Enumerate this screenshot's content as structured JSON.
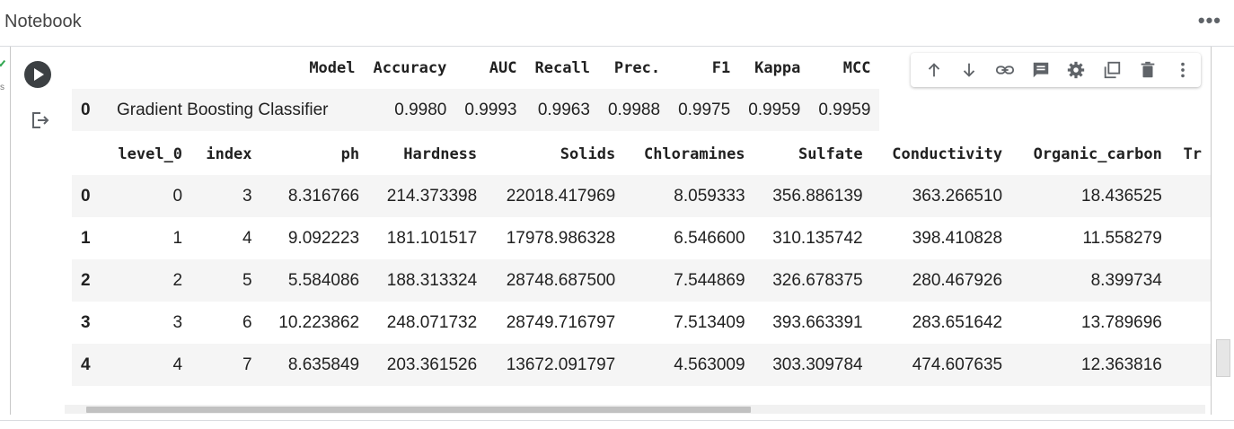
{
  "header": {
    "title": "Notebook",
    "more_icon": "more-horizontal-icon"
  },
  "cell": {
    "run_icon": "play-icon",
    "output_icon": "output-arrow-icon",
    "status": {
      "check_icon": "check-icon",
      "label": "s"
    },
    "toolbar": {
      "items": [
        "arrow-up-icon",
        "arrow-down-icon",
        "link-icon",
        "comment-icon",
        "gear-icon",
        "copy-to-drive-icon",
        "trash-icon",
        "more-vertical-icon"
      ]
    }
  },
  "results_table": {
    "columns": [
      "",
      "Model",
      "Accuracy",
      "AUC",
      "Recall",
      "Prec.",
      "F1",
      "Kappa",
      "MCC"
    ],
    "rows": [
      [
        "0",
        "Gradient Boosting Classifier",
        "0.9980",
        "0.9993",
        "0.9963",
        "0.9988",
        "0.9975",
        "0.9959",
        "0.9959"
      ]
    ]
  },
  "data_table": {
    "columns": [
      "",
      "level_0",
      "index",
      "ph",
      "Hardness",
      "Solids",
      "Chloramines",
      "Sulfate",
      "Conductivity",
      "Organic_carbon",
      "Tr"
    ],
    "rows": [
      [
        "0",
        "0",
        "3",
        "8.316766",
        "214.373398",
        "22018.417969",
        "8.059333",
        "356.886139",
        "363.266510",
        "18.436525",
        ""
      ],
      [
        "1",
        "1",
        "4",
        "9.092223",
        "181.101517",
        "17978.986328",
        "6.546600",
        "310.135742",
        "398.410828",
        "11.558279",
        ""
      ],
      [
        "2",
        "2",
        "5",
        "5.584086",
        "188.313324",
        "28748.687500",
        "7.544869",
        "326.678375",
        "280.467926",
        "8.399734",
        ""
      ],
      [
        "3",
        "3",
        "6",
        "10.223862",
        "248.071732",
        "28749.716797",
        "7.513409",
        "393.663391",
        "283.651642",
        "13.789696",
        ""
      ],
      [
        "4",
        "4",
        "7",
        "8.635849",
        "203.361526",
        "13672.091797",
        "4.563009",
        "303.309784",
        "474.607635",
        "12.363816",
        ""
      ]
    ]
  },
  "colors": {
    "accent": "#3c4043",
    "row_stripe": "#f5f5f5",
    "status": "#34a853"
  }
}
